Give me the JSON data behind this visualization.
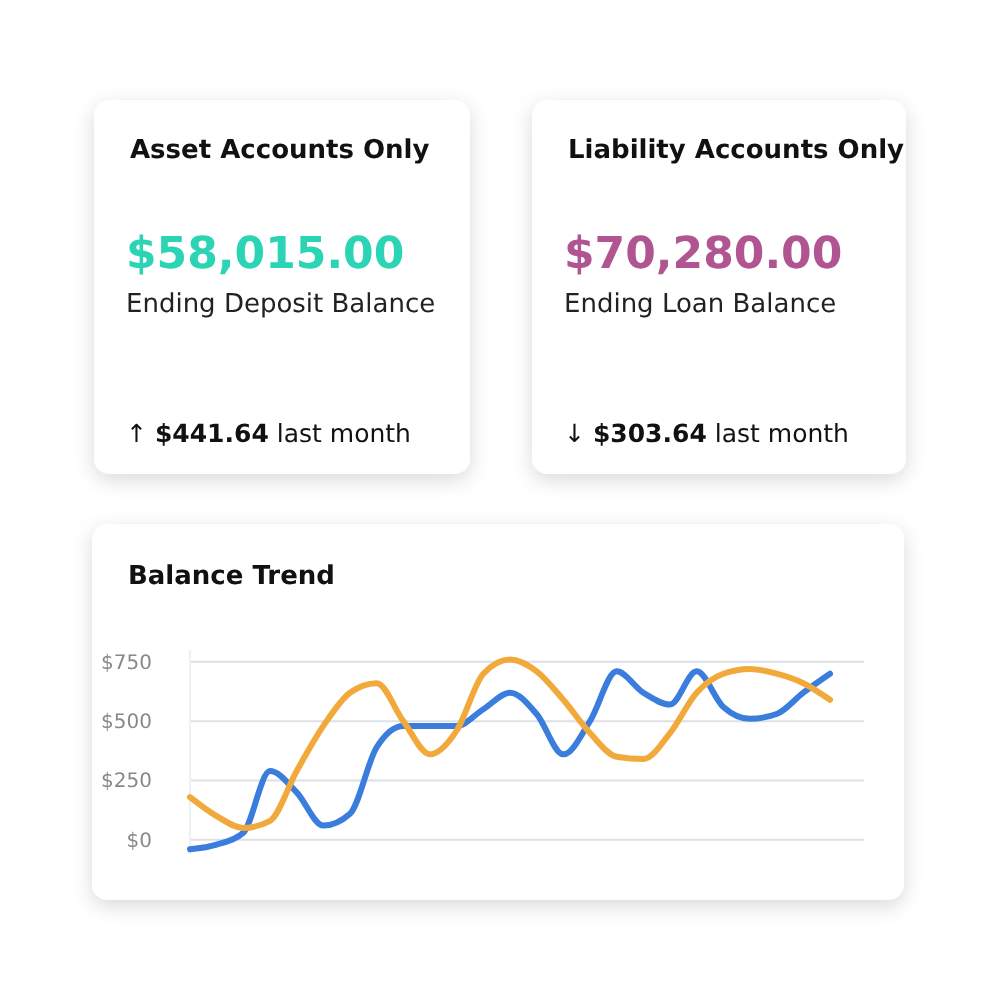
{
  "chart_data": [
    {
      "type": "other",
      "title": "Asset Accounts Only",
      "color": "#2ad4b4",
      "annotations": [
        "$58,015.00",
        "Ending Deposit Balance",
        "↑ $441.64 last month"
      ]
    },
    {
      "type": "other",
      "title": "Liability Accounts Only",
      "color": "#b05592",
      "annotations": [
        "$70,280.00",
        "Ending Loan Balance",
        "↓ $303.64 last month"
      ]
    },
    {
      "type": "line",
      "title": "Balance Trend",
      "categories": [
        null,
        null,
        null,
        null,
        null,
        null,
        null,
        null,
        null,
        null,
        null,
        null,
        null,
        null,
        null,
        null,
        null,
        null,
        null,
        null,
        null,
        null,
        null,
        null,
        null
      ],
      "series": [
        {
          "color": "#3b7ddd",
          "values": [
            -40,
            -20,
            30,
            290,
            200,
            60,
            110,
            390,
            480,
            480,
            480,
            550,
            620,
            530,
            360,
            500,
            710,
            620,
            570,
            710,
            560,
            510,
            530,
            620,
            700
          ]
        },
        {
          "color": "#f2a93b",
          "values": [
            180,
            100,
            50,
            80,
            290,
            480,
            620,
            660,
            500,
            360,
            460,
            700,
            760,
            710,
            590,
            450,
            350,
            340,
            450,
            620,
            700,
            720,
            700,
            660,
            590
          ]
        }
      ],
      "ylim": [
        -60,
        800
      ],
      "yticks": [
        {
          "value": 0,
          "label": "$0"
        },
        {
          "value": 250,
          "label": "$250"
        },
        {
          "value": 500,
          "label": "$500"
        },
        {
          "value": 750,
          "label": "$750"
        }
      ],
      "grid": "y",
      "marker": "none",
      "line_style": "solid"
    }
  ]
}
